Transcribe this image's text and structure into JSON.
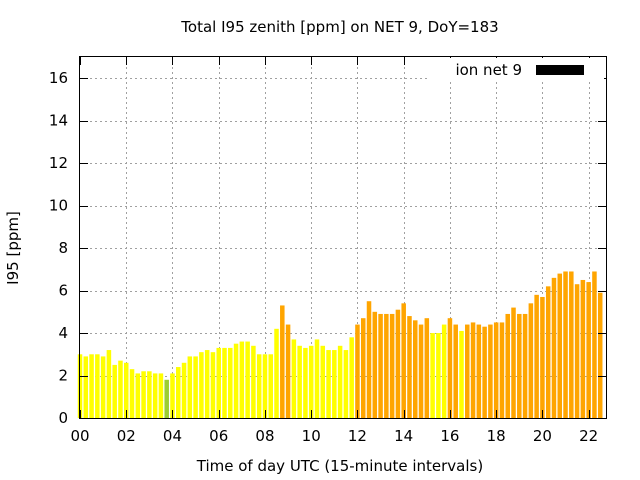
{
  "chart_data": {
    "type": "bar",
    "title": "Total I95 zenith [ppm] on NET 9, DoY=183",
    "xlabel": "Time of day UTC (15-minute intervals)",
    "ylabel": "I95 [ppm]",
    "xlim": [
      0,
      22.75
    ],
    "ylim": [
      0,
      17
    ],
    "xticks": [
      "00",
      "02",
      "04",
      "06",
      "08",
      "10",
      "12",
      "14",
      "16",
      "18",
      "20",
      "22"
    ],
    "yticks": [
      "0",
      "2",
      "4",
      "6",
      "8",
      "10",
      "12",
      "14",
      "16"
    ],
    "grid": true,
    "legend": {
      "position": "top-right",
      "label": "ion net 9",
      "color": "#000000"
    },
    "colors": {
      "low": "#ffff00",
      "normal": "#9acd32",
      "high": "#ffa500",
      "very_high": "#f0a000"
    },
    "interval_hours": 0.25,
    "values": [
      3.0,
      2.9,
      3.0,
      3.0,
      2.9,
      3.2,
      2.5,
      2.7,
      2.6,
      2.3,
      2.1,
      2.2,
      2.2,
      2.1,
      2.1,
      1.8,
      2.1,
      2.4,
      2.6,
      2.9,
      2.9,
      3.1,
      3.2,
      3.1,
      3.3,
      3.3,
      3.3,
      3.5,
      3.6,
      3.6,
      3.4,
      3.0,
      3.0,
      3.0,
      4.2,
      5.3,
      4.4,
      3.7,
      3.4,
      3.3,
      3.4,
      3.7,
      3.4,
      3.2,
      3.2,
      3.4,
      3.2,
      3.8,
      4.4,
      4.7,
      5.5,
      5.0,
      4.9,
      4.9,
      4.9,
      5.1,
      5.4,
      4.8,
      4.6,
      4.4,
      4.7,
      4.0,
      4.0,
      4.4,
      4.7,
      4.4,
      4.1,
      4.4,
      4.5,
      4.4,
      4.3,
      4.4,
      4.5,
      4.5,
      4.9,
      5.2,
      4.9,
      4.9,
      5.4,
      5.8,
      5.7,
      6.2,
      6.6,
      6.8,
      6.9,
      6.9,
      6.3,
      6.5,
      6.4,
      6.9,
      5.9
    ],
    "categories": [
      "low",
      "low",
      "low",
      "low",
      "low",
      "low",
      "low",
      "low",
      "low",
      "low",
      "low",
      "low",
      "low",
      "low",
      "low",
      "normal",
      "low",
      "low",
      "low",
      "low",
      "low",
      "low",
      "low",
      "low",
      "low",
      "low",
      "low",
      "low",
      "low",
      "low",
      "low",
      "low",
      "low",
      "low",
      "low",
      "high",
      "high",
      "low",
      "low",
      "low",
      "low",
      "low",
      "low",
      "low",
      "low",
      "low",
      "low",
      "low",
      "high",
      "high",
      "high",
      "high",
      "high",
      "high",
      "high",
      "high",
      "high",
      "high",
      "high",
      "high",
      "high",
      "low",
      "low",
      "low",
      "high",
      "high",
      "low",
      "high",
      "high",
      "high",
      "high",
      "high",
      "high",
      "high",
      "high",
      "high",
      "high",
      "high",
      "high",
      "high",
      "high",
      "high",
      "high",
      "high",
      "high",
      "high",
      "high",
      "high",
      "high",
      "high",
      "high"
    ]
  }
}
